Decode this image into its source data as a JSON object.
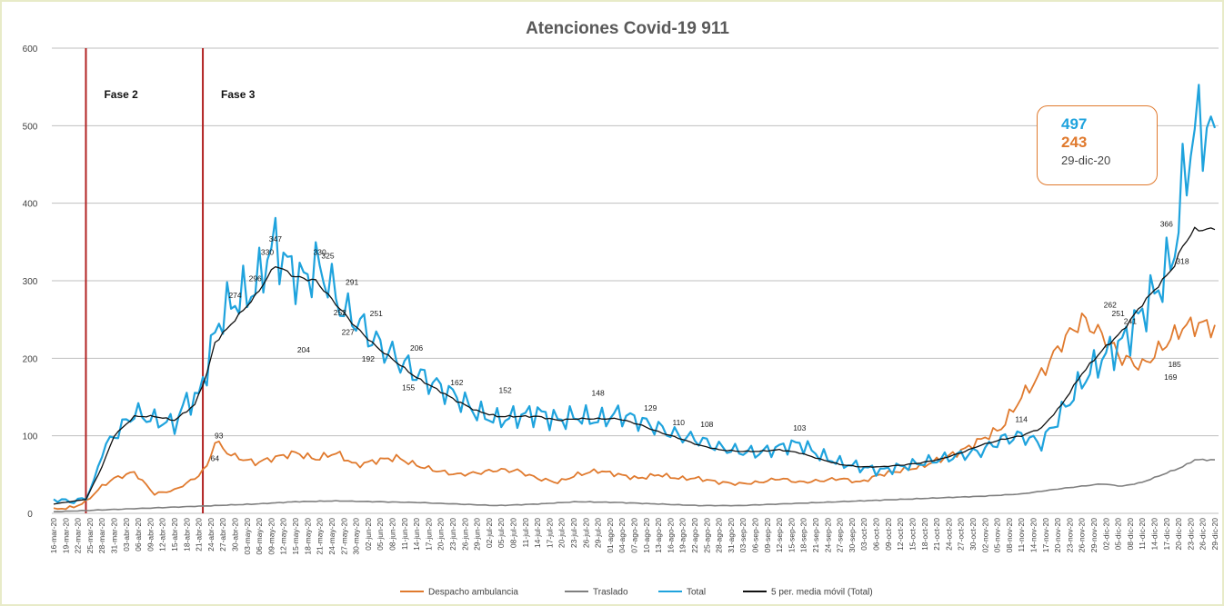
{
  "chart_data": {
    "type": "line",
    "title": "Atenciones Covid-19 911",
    "xlabel": "",
    "ylabel": "",
    "ylim": [
      0,
      600
    ],
    "yticks": [
      "0",
      "100",
      "200",
      "300",
      "400",
      "500",
      "600"
    ],
    "grid": true,
    "legend_position": "bottom",
    "x_start": "16-mar-20",
    "x_end": "29-dic-20",
    "xtick_labels": [
      "16-mar-20",
      "19-mar-20",
      "22-mar-20",
      "25-mar-20",
      "28-mar-20",
      "31-mar-20",
      "03-abr-20",
      "06-abr-20",
      "09-abr-20",
      "12-abr-20",
      "15-abr-20",
      "18-abr-20",
      "21-abr-20",
      "24-abr-20",
      "27-abr-20",
      "30-abr-20",
      "03-may-20",
      "06-may-20",
      "09-may-20",
      "12-may-20",
      "15-may-20",
      "18-may-20",
      "21-may-20",
      "24-may-20",
      "27-may-20",
      "30-may-20",
      "02-jun-20",
      "05-jun-20",
      "08-jun-20",
      "11-jun-20",
      "14-jun-20",
      "17-jun-20",
      "20-jun-20",
      "23-jun-20",
      "26-jun-20",
      "29-jun-20",
      "02-jul-20",
      "05-jul-20",
      "08-jul-20",
      "11-jul-20",
      "14-jul-20",
      "17-jul-20",
      "20-jul-20",
      "23-jul-20",
      "26-jul-20",
      "29-jul-20",
      "01-ago-20",
      "04-ago-20",
      "07-ago-20",
      "10-ago-20",
      "13-ago-20",
      "16-ago-20",
      "19-ago-20",
      "22-ago-20",
      "25-ago-20",
      "28-ago-20",
      "31-ago-20",
      "03-sep-20",
      "06-sep-20",
      "09-sep-20",
      "12-sep-20",
      "15-sep-20",
      "18-sep-20",
      "21-sep-20",
      "24-sep-20",
      "27-sep-20",
      "30-sep-20",
      "03-oct-20",
      "06-oct-20",
      "09-oct-20",
      "12-oct-20",
      "15-oct-20",
      "18-oct-20",
      "21-oct-20",
      "24-oct-20",
      "27-oct-20",
      "30-oct-20",
      "02-nov-20",
      "05-nov-20",
      "08-nov-20",
      "11-nov-20",
      "14-nov-20",
      "17-nov-20",
      "20-nov-20",
      "23-nov-20",
      "26-nov-20",
      "29-nov-20",
      "02-dic-20",
      "05-dic-20",
      "08-dic-20",
      "11-dic-20",
      "14-dic-20",
      "17-dic-20",
      "20-dic-20",
      "23-dic-20",
      "26-dic-20",
      "29-dic-20"
    ],
    "xtick_step_days": 3,
    "phases": [
      {
        "label": "Fase 2",
        "day_index": 8,
        "color": "#b22222"
      },
      {
        "label": "Fase 3",
        "day_index": 37,
        "color": "#b22222"
      }
    ],
    "series": [
      {
        "name": "Despacho ambulancia",
        "color": "#e07a2e",
        "keypoints": [
          [
            0,
            5
          ],
          [
            5,
            8
          ],
          [
            8,
            15
          ],
          [
            12,
            35
          ],
          [
            15,
            45
          ],
          [
            20,
            53
          ],
          [
            25,
            25
          ],
          [
            30,
            30
          ],
          [
            35,
            45
          ],
          [
            38,
            60
          ],
          [
            40,
            93
          ],
          [
            44,
            75
          ],
          [
            50,
            65
          ],
          [
            55,
            72
          ],
          [
            60,
            78
          ],
          [
            65,
            70
          ],
          [
            70,
            78
          ],
          [
            75,
            62
          ],
          [
            80,
            68
          ],
          [
            85,
            72
          ],
          [
            90,
            62
          ],
          [
            95,
            55
          ],
          [
            100,
            50
          ],
          [
            105,
            52
          ],
          [
            110,
            56
          ],
          [
            115,
            55
          ],
          [
            120,
            45
          ],
          [
            125,
            40
          ],
          [
            130,
            50
          ],
          [
            135,
            55
          ],
          [
            140,
            50
          ],
          [
            145,
            45
          ],
          [
            150,
            50
          ],
          [
            155,
            45
          ],
          [
            160,
            45
          ],
          [
            165,
            40
          ],
          [
            170,
            38
          ],
          [
            175,
            40
          ],
          [
            180,
            45
          ],
          [
            185,
            40
          ],
          [
            190,
            42
          ],
          [
            195,
            45
          ],
          [
            200,
            40
          ],
          [
            205,
            50
          ],
          [
            210,
            55
          ],
          [
            215,
            60
          ],
          [
            220,
            70
          ],
          [
            225,
            80
          ],
          [
            230,
            95
          ],
          [
            235,
            110
          ],
          [
            240,
            150
          ],
          [
            245,
            180
          ],
          [
            250,
            220
          ],
          [
            255,
            250
          ],
          [
            260,
            230
          ],
          [
            265,
            200
          ],
          [
            270,
            190
          ],
          [
            275,
            215
          ],
          [
            278,
            230
          ],
          [
            280,
            240
          ],
          [
            283,
            243
          ]
        ]
      },
      {
        "name": "Traslado",
        "color": "#7f7f7f",
        "keypoints": [
          [
            0,
            2
          ],
          [
            10,
            4
          ],
          [
            20,
            6
          ],
          [
            30,
            8
          ],
          [
            40,
            10
          ],
          [
            50,
            12
          ],
          [
            60,
            15
          ],
          [
            70,
            16
          ],
          [
            80,
            15
          ],
          [
            90,
            14
          ],
          [
            100,
            12
          ],
          [
            110,
            10
          ],
          [
            120,
            12
          ],
          [
            130,
            15
          ],
          [
            140,
            14
          ],
          [
            150,
            12
          ],
          [
            160,
            10
          ],
          [
            170,
            10
          ],
          [
            180,
            12
          ],
          [
            190,
            14
          ],
          [
            200,
            16
          ],
          [
            210,
            18
          ],
          [
            220,
            20
          ],
          [
            230,
            22
          ],
          [
            240,
            25
          ],
          [
            250,
            32
          ],
          [
            255,
            35
          ],
          [
            260,
            38
          ],
          [
            265,
            35
          ],
          [
            270,
            40
          ],
          [
            275,
            50
          ],
          [
            280,
            60
          ],
          [
            283,
            69
          ]
        ]
      },
      {
        "name": "Total",
        "color": "#1fa3dd",
        "keypoints": [
          [
            0,
            18
          ],
          [
            5,
            15
          ],
          [
            8,
            20
          ],
          [
            10,
            40
          ],
          [
            12,
            80
          ],
          [
            15,
            100
          ],
          [
            20,
            130
          ],
          [
            25,
            120
          ],
          [
            30,
            115
          ],
          [
            33,
            145
          ],
          [
            36,
            150
          ],
          [
            38,
            190
          ],
          [
            40,
            230
          ],
          [
            42,
            260
          ],
          [
            45,
            274
          ],
          [
            50,
            290
          ],
          [
            53,
            330
          ],
          [
            55,
            347
          ],
          [
            58,
            320
          ],
          [
            62,
            300
          ],
          [
            65,
            320
          ],
          [
            68,
            300
          ],
          [
            72,
            260
          ],
          [
            75,
            250
          ],
          [
            80,
            220
          ],
          [
            85,
            200
          ],
          [
            90,
            180
          ],
          [
            95,
            165
          ],
          [
            100,
            150
          ],
          [
            105,
            130
          ],
          [
            110,
            120
          ],
          [
            115,
            125
          ],
          [
            120,
            130
          ],
          [
            125,
            120
          ],
          [
            130,
            125
          ],
          [
            135,
            120
          ],
          [
            140,
            128
          ],
          [
            145,
            120
          ],
          [
            150,
            110
          ],
          [
            155,
            100
          ],
          [
            160,
            95
          ],
          [
            165,
            85
          ],
          [
            170,
            80
          ],
          [
            175,
            78
          ],
          [
            180,
            85
          ],
          [
            185,
            90
          ],
          [
            190,
            75
          ],
          [
            195,
            65
          ],
          [
            200,
            60
          ],
          [
            205,
            55
          ],
          [
            210,
            60
          ],
          [
            215,
            65
          ],
          [
            220,
            70
          ],
          [
            225,
            75
          ],
          [
            230,
            80
          ],
          [
            235,
            95
          ],
          [
            240,
            100
          ],
          [
            245,
            90
          ],
          [
            250,
            130
          ],
          [
            255,
            170
          ],
          [
            260,
            200
          ],
          [
            265,
            220
          ],
          [
            270,
            260
          ],
          [
            275,
            300
          ],
          [
            278,
            340
          ],
          [
            280,
            420
          ],
          [
            283,
            497
          ]
        ]
      },
      {
        "name": "5 per. media móvil (Total)",
        "color": "#111111",
        "keypoints": [
          [
            0,
            12
          ],
          [
            8,
            18
          ],
          [
            12,
            60
          ],
          [
            15,
            100
          ],
          [
            20,
            125
          ],
          [
            25,
            125
          ],
          [
            30,
            120
          ],
          [
            35,
            140
          ],
          [
            38,
            180
          ],
          [
            40,
            220
          ],
          [
            45,
            250
          ],
          [
            50,
            280
          ],
          [
            55,
            320
          ],
          [
            60,
            305
          ],
          [
            65,
            300
          ],
          [
            70,
            270
          ],
          [
            75,
            240
          ],
          [
            80,
            215
          ],
          [
            85,
            195
          ],
          [
            90,
            175
          ],
          [
            95,
            160
          ],
          [
            100,
            145
          ],
          [
            105,
            132
          ],
          [
            110,
            125
          ],
          [
            115,
            125
          ],
          [
            120,
            125
          ],
          [
            125,
            120
          ],
          [
            130,
            122
          ],
          [
            135,
            122
          ],
          [
            140,
            122
          ],
          [
            145,
            115
          ],
          [
            150,
            105
          ],
          [
            155,
            97
          ],
          [
            160,
            88
          ],
          [
            165,
            82
          ],
          [
            170,
            80
          ],
          [
            175,
            80
          ],
          [
            180,
            82
          ],
          [
            185,
            78
          ],
          [
            190,
            70
          ],
          [
            195,
            63
          ],
          [
            200,
            60
          ],
          [
            205,
            60
          ],
          [
            210,
            62
          ],
          [
            215,
            65
          ],
          [
            220,
            70
          ],
          [
            225,
            78
          ],
          [
            230,
            88
          ],
          [
            235,
            95
          ],
          [
            240,
            100
          ],
          [
            245,
            110
          ],
          [
            250,
            140
          ],
          [
            255,
            180
          ],
          [
            260,
            210
          ],
          [
            265,
            235
          ],
          [
            270,
            270
          ],
          [
            275,
            300
          ],
          [
            278,
            320
          ],
          [
            280,
            345
          ],
          [
            283,
            366
          ]
        ]
      }
    ],
    "data_labels": [
      {
        "series": 2,
        "day": 40,
        "text": "64"
      },
      {
        "series": 0,
        "day": 41,
        "text": "93"
      },
      {
        "series": 2,
        "day": 45,
        "text": "274"
      },
      {
        "series": 2,
        "day": 50,
        "text": "296"
      },
      {
        "series": 2,
        "day": 55,
        "text": "347"
      },
      {
        "series": 2,
        "day": 53,
        "text": "330"
      },
      {
        "series": 2,
        "day": 62,
        "text": "204"
      },
      {
        "series": 2,
        "day": 66,
        "text": "330"
      },
      {
        "series": 2,
        "day": 68,
        "text": "325"
      },
      {
        "series": 2,
        "day": 71,
        "text": "252"
      },
      {
        "series": 2,
        "day": 74,
        "text": "291"
      },
      {
        "series": 2,
        "day": 73,
        "text": "227"
      },
      {
        "series": 2,
        "day": 80,
        "text": "251"
      },
      {
        "series": 2,
        "day": 78,
        "text": "192"
      },
      {
        "series": 2,
        "day": 90,
        "text": "206"
      },
      {
        "series": 2,
        "day": 88,
        "text": "155"
      },
      {
        "series": 2,
        "day": 100,
        "text": "162"
      },
      {
        "series": 2,
        "day": 112,
        "text": "152"
      },
      {
        "series": 2,
        "day": 135,
        "text": "148"
      },
      {
        "series": 2,
        "day": 148,
        "text": "129"
      },
      {
        "series": 2,
        "day": 155,
        "text": "110"
      },
      {
        "series": 2,
        "day": 162,
        "text": "108"
      },
      {
        "series": 2,
        "day": 185,
        "text": "103"
      },
      {
        "series": 2,
        "day": 240,
        "text": "114"
      },
      {
        "series": 2,
        "day": 262,
        "text": "262"
      },
      {
        "series": 0,
        "day": 264,
        "text": "251"
      },
      {
        "series": 0,
        "day": 267,
        "text": "241"
      },
      {
        "series": 2,
        "day": 276,
        "text": "366"
      },
      {
        "series": 2,
        "day": 280,
        "text": "318"
      },
      {
        "series": 0,
        "day": 278,
        "text": "185"
      },
      {
        "series": 0,
        "day": 277,
        "text": "169"
      }
    ]
  },
  "legend": {
    "items": [
      {
        "label": "Despacho ambulancia",
        "color": "#e07a2e"
      },
      {
        "label": "Traslado",
        "color": "#7f7f7f"
      },
      {
        "label": "Total",
        "color": "#1fa3dd"
      },
      {
        "label": "5 per. media móvil (Total)",
        "color": "#111111"
      }
    ]
  },
  "callout": {
    "total_value": "497",
    "ambulance_value": "243",
    "date": "29-dic-20"
  }
}
